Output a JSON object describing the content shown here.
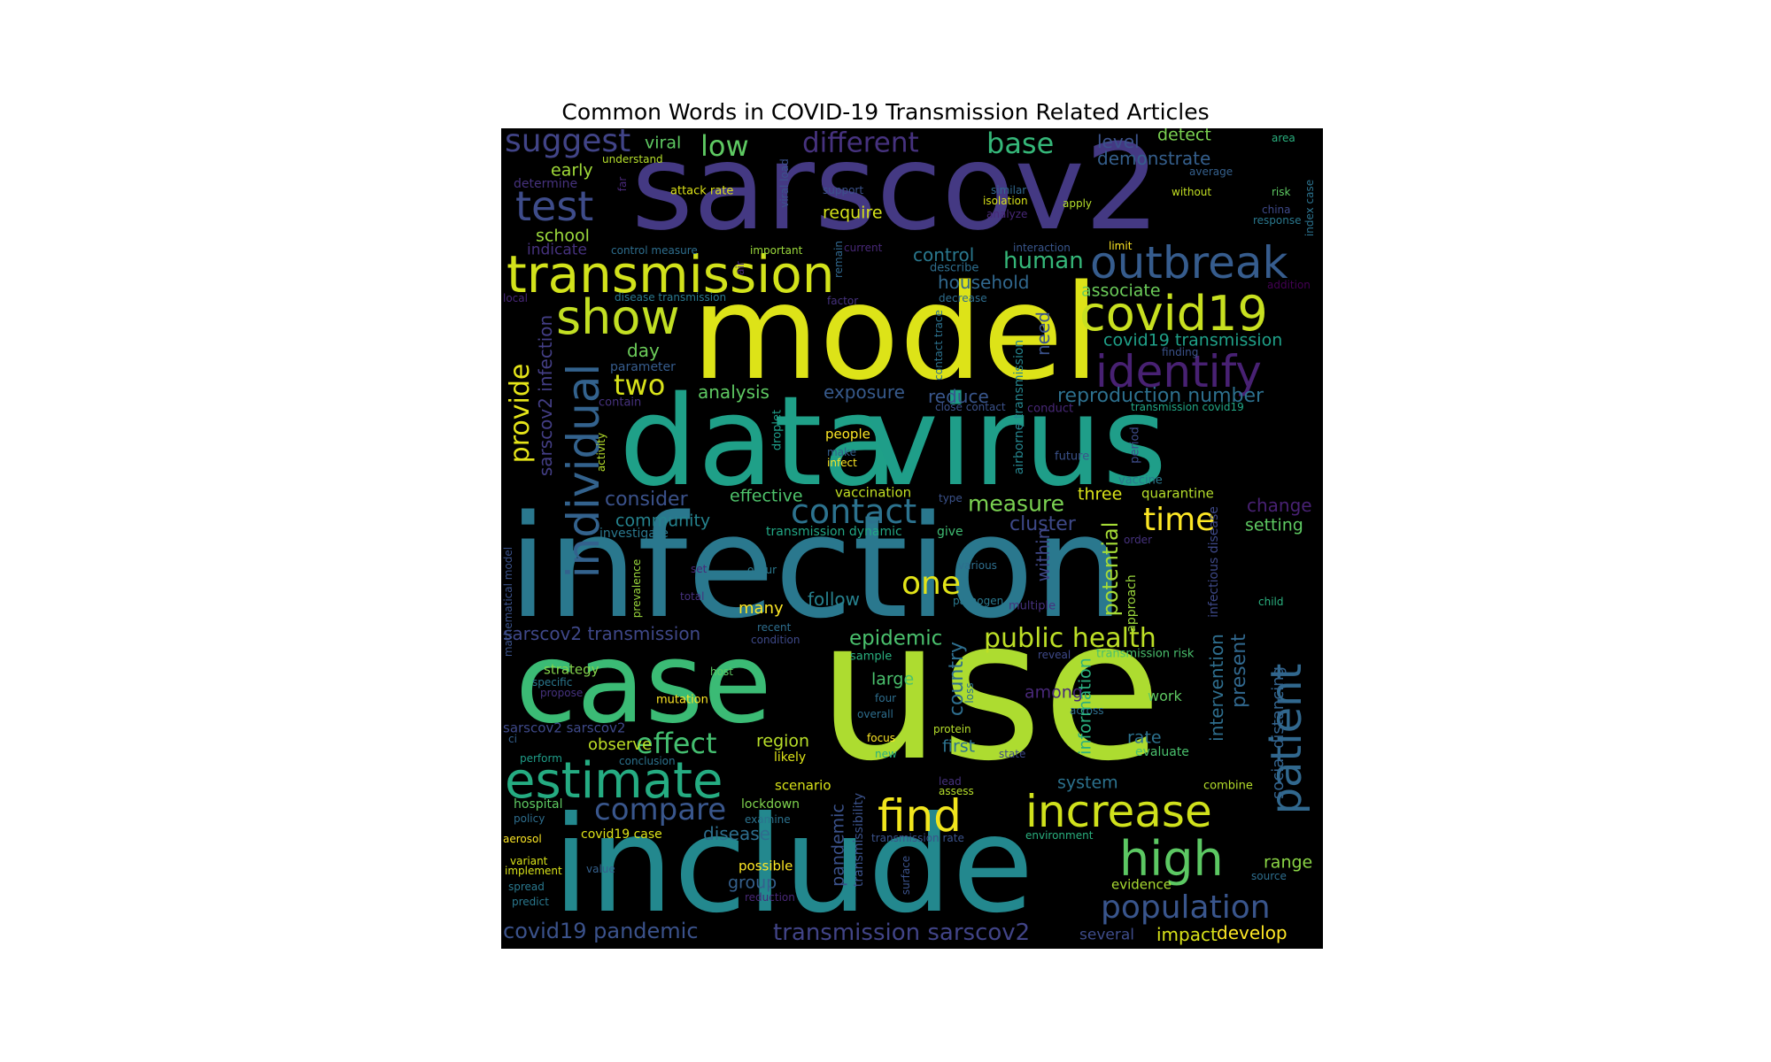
{
  "title": "Common Words in COVID-19 Transmission Related Articles",
  "words": [
    {
      "text": "sarscov2",
      "color": "#443983"
    },
    {
      "text": "model",
      "color": "#dde318"
    },
    {
      "text": "data",
      "color": "#1fa088"
    },
    {
      "text": "virus",
      "color": "#1f9e89"
    },
    {
      "text": "infection",
      "color": "#2a788e"
    },
    {
      "text": "case",
      "color": "#3bbb75"
    },
    {
      "text": "use",
      "color": "#addc30"
    },
    {
      "text": "include",
      "color": "#23888e"
    },
    {
      "text": "transmission",
      "color": "#d2e21b"
    },
    {
      "text": "show",
      "color": "#c2df23"
    },
    {
      "text": "test",
      "color": "#3e4c8a"
    },
    {
      "text": "suggest",
      "color": "#414487"
    },
    {
      "text": "low",
      "color": "#5ec962"
    },
    {
      "text": "different",
      "color": "#46327e"
    },
    {
      "text": "base",
      "color": "#35b779"
    },
    {
      "text": "outbreak",
      "color": "#365c8d"
    },
    {
      "text": "covid19",
      "color": "#c8e020"
    },
    {
      "text": "identify",
      "color": "#482173"
    },
    {
      "text": "individual",
      "color": "#33628d"
    },
    {
      "text": "provide",
      "color": "#e5e419"
    },
    {
      "text": "two",
      "color": "#d8e219"
    },
    {
      "text": "contact",
      "color": "#2c728e"
    },
    {
      "text": "time",
      "color": "#fde725"
    },
    {
      "text": "estimate",
      "color": "#25ac82"
    },
    {
      "text": "effect",
      "color": "#44bf70"
    },
    {
      "text": "compare",
      "color": "#39568c"
    },
    {
      "text": "find",
      "color": "#f1e51d"
    },
    {
      "text": "increase",
      "color": "#d0e11c"
    },
    {
      "text": "high",
      "color": "#5cc863"
    },
    {
      "text": "patient",
      "color": "#31688e"
    },
    {
      "text": "population",
      "color": "#39558c"
    },
    {
      "text": "public health",
      "color": "#bddf26"
    },
    {
      "text": "one",
      "color": "#e2e418"
    },
    {
      "text": "epidemic",
      "color": "#4ac16d"
    },
    {
      "text": "country",
      "color": "#2e6e8e"
    },
    {
      "text": "measure",
      "color": "#7ad151"
    },
    {
      "text": "cluster",
      "color": "#3e4989"
    },
    {
      "text": "reproduction number",
      "color": "#2d708e"
    },
    {
      "text": "within",
      "color": "#3f4788"
    },
    {
      "text": "potential",
      "color": "#a5db36"
    },
    {
      "text": "sarscov2 infection",
      "color": "#433e85"
    },
    {
      "text": "covid19 pandemic",
      "color": "#3b528b"
    },
    {
      "text": "transmission sarscov2",
      "color": "#414487"
    },
    {
      "text": "sarscov2 transmission",
      "color": "#3f4889"
    },
    {
      "text": "analysis",
      "color": "#5ec962"
    },
    {
      "text": "exposure",
      "color": "#375a8c"
    },
    {
      "text": "reduce",
      "color": "#39568c"
    },
    {
      "text": "consider",
      "color": "#3b528b"
    },
    {
      "text": "effective",
      "color": "#4ec36b"
    },
    {
      "text": "community",
      "color": "#25838e"
    },
    {
      "text": "human",
      "color": "#35b779"
    },
    {
      "text": "household",
      "color": "#31688e"
    },
    {
      "text": "control",
      "color": "#2a788e"
    },
    {
      "text": "associate",
      "color": "#6ccd5a"
    },
    {
      "text": "covid19 transmission",
      "color": "#1fa088"
    },
    {
      "text": "require",
      "color": "#d5e21a"
    },
    {
      "text": "school",
      "color": "#9bd93c"
    },
    {
      "text": "early",
      "color": "#a0da39"
    },
    {
      "text": "viral",
      "color": "#5ec962"
    },
    {
      "text": "level",
      "color": "#3b528b"
    },
    {
      "text": "demonstrate",
      "color": "#355f8d"
    },
    {
      "text": "detect",
      "color": "#7ad151"
    },
    {
      "text": "indicate",
      "color": "#46327e"
    },
    {
      "text": "day",
      "color": "#6ccd5a"
    },
    {
      "text": "need",
      "color": "#3b528b"
    },
    {
      "text": "three",
      "color": "#d8e219"
    },
    {
      "text": "quarantine",
      "color": "#b5de2b"
    },
    {
      "text": "change",
      "color": "#482173"
    },
    {
      "text": "setting",
      "color": "#5ec962"
    },
    {
      "text": "follow",
      "color": "#26818e"
    },
    {
      "text": "many",
      "color": "#fde725"
    },
    {
      "text": "large",
      "color": "#4ac16d"
    },
    {
      "text": "first",
      "color": "#2c728e"
    },
    {
      "text": "region",
      "color": "#b8de29"
    },
    {
      "text": "observe",
      "color": "#bddf26"
    },
    {
      "text": "present",
      "color": "#31688e"
    },
    {
      "text": "social distancing",
      "color": "#33638d"
    },
    {
      "text": "intervention",
      "color": "#2e6e8e"
    },
    {
      "text": "information",
      "color": "#2ab07f"
    },
    {
      "text": "rate",
      "color": "#2c728e"
    },
    {
      "text": "among",
      "color": "#482878"
    },
    {
      "text": "system",
      "color": "#2c728e"
    },
    {
      "text": "range",
      "color": "#8bd646"
    },
    {
      "text": "impact",
      "color": "#d8e219"
    },
    {
      "text": "develop",
      "color": "#fde725"
    },
    {
      "text": "several",
      "color": "#3e4c8a"
    },
    {
      "text": "disease",
      "color": "#2e6e8e"
    },
    {
      "text": "group",
      "color": "#35608d"
    },
    {
      "text": "pandemic",
      "color": "#3b528b"
    },
    {
      "text": "evidence",
      "color": "#aadc32"
    },
    {
      "text": "scenario",
      "color": "#d8e219"
    },
    {
      "text": "lockdown",
      "color": "#7fd34e"
    },
    {
      "text": "hospital",
      "color": "#5ec962"
    },
    {
      "text": "possible",
      "color": "#fde725"
    },
    {
      "text": "covid19 case",
      "color": "#dde318"
    },
    {
      "text": "strategy",
      "color": "#84d44b"
    },
    {
      "text": "people",
      "color": "#fde725"
    },
    {
      "text": "vaccination",
      "color": "#c2df23"
    },
    {
      "text": "likely",
      "color": "#dde318"
    },
    {
      "text": "airborne transmission",
      "color": "#25858e"
    },
    {
      "text": "mutation",
      "color": "#fde725"
    },
    {
      "text": "work",
      "color": "#5ec962"
    },
    {
      "text": "evaluate",
      "color": "#4ac16d"
    },
    {
      "text": "combine",
      "color": "#b5de2b"
    },
    {
      "text": "transmission dynamic",
      "color": "#22a785"
    },
    {
      "text": "give",
      "color": "#3fbc73"
    },
    {
      "text": "investigate",
      "color": "#2a788e"
    },
    {
      "text": "infectious disease",
      "color": "#3e4989"
    },
    {
      "text": "approach",
      "color": "#9bd93c"
    },
    {
      "text": "sample",
      "color": "#2ab07f"
    },
    {
      "text": "transmission risk",
      "color": "#4ac16d"
    },
    {
      "text": "sarscov2 sarscov2",
      "color": "#3e4989"
    },
    {
      "text": "parameter",
      "color": "#365c8d"
    },
    {
      "text": "contain",
      "color": "#46327e"
    },
    {
      "text": "droplet",
      "color": "#1f9e89"
    },
    {
      "text": "activity",
      "color": "#b5de2b"
    },
    {
      "text": "vaccine",
      "color": "#2a788e"
    },
    {
      "text": "period",
      "color": "#3e4c8a"
    },
    {
      "text": "future",
      "color": "#3b528b"
    },
    {
      "text": "make",
      "color": "#355f8d"
    },
    {
      "text": "infect",
      "color": "#fde725"
    },
    {
      "text": "transmission covid19",
      "color": "#22a785"
    },
    {
      "text": "finding",
      "color": "#3b528b"
    },
    {
      "text": "conduct",
      "color": "#482878"
    },
    {
      "text": "close contact",
      "color": "#3b528b"
    },
    {
      "text": "contact trace",
      "color": "#2c728e"
    },
    {
      "text": "decrease",
      "color": "#2e6e8e"
    },
    {
      "text": "factor",
      "color": "#46327e"
    },
    {
      "text": "describe",
      "color": "#2e6e8e"
    },
    {
      "text": "disease transmission",
      "color": "#2a788e"
    },
    {
      "text": "remain",
      "color": "#31688e"
    },
    {
      "text": "air",
      "color": "#482878"
    },
    {
      "text": "local",
      "color": "#482878"
    },
    {
      "text": "addition",
      "color": "#440154"
    },
    {
      "text": "attack rate",
      "color": "#dde318"
    },
    {
      "text": "support",
      "color": "#3b528b"
    },
    {
      "text": "understand",
      "color": "#b5de2b"
    },
    {
      "text": "determine",
      "color": "#46327e"
    },
    {
      "text": "viral load",
      "color": "#3b528b"
    },
    {
      "text": "control measure",
      "color": "#2e6e8e"
    },
    {
      "text": "important",
      "color": "#9bd93c"
    },
    {
      "text": "current",
      "color": "#482878"
    },
    {
      "text": "interaction",
      "color": "#39568c"
    },
    {
      "text": "limit",
      "color": "#fde725"
    },
    {
      "text": "isolation",
      "color": "#d8e219"
    },
    {
      "text": "apply",
      "color": "#b5de2b"
    },
    {
      "text": "similar",
      "color": "#31688e"
    },
    {
      "text": "analyze",
      "color": "#482878"
    },
    {
      "text": "without",
      "color": "#c2df23"
    },
    {
      "text": "risk",
      "color": "#5ec962"
    },
    {
      "text": "average",
      "color": "#35608d"
    },
    {
      "text": "area",
      "color": "#2ab07f"
    },
    {
      "text": "china",
      "color": "#3e4989"
    },
    {
      "text": "response",
      "color": "#2a788e"
    },
    {
      "text": "index case",
      "color": "#2c728e"
    },
    {
      "text": "far",
      "color": "#482878"
    },
    {
      "text": "type",
      "color": "#3b528b"
    },
    {
      "text": "various",
      "color": "#2e6e8e"
    },
    {
      "text": "occur",
      "color": "#2a788e"
    },
    {
      "text": "order",
      "color": "#46327e"
    },
    {
      "text": "set",
      "color": "#482878"
    },
    {
      "text": "total",
      "color": "#46327e"
    },
    {
      "text": "pathogen",
      "color": "#2a788e"
    },
    {
      "text": "multiple",
      "color": "#46327e"
    },
    {
      "text": "child",
      "color": "#2ab07f"
    },
    {
      "text": "prevalence",
      "color": "#9bd93c"
    },
    {
      "text": "mathematical model",
      "color": "#3b528b"
    },
    {
      "text": "recent",
      "color": "#2e6e8e"
    },
    {
      "text": "condition",
      "color": "#3e4989"
    },
    {
      "text": "reveal",
      "color": "#3e4989"
    },
    {
      "text": "specific",
      "color": "#2a788e"
    },
    {
      "text": "propose",
      "color": "#46327e"
    },
    {
      "text": "host",
      "color": "#5ec962"
    },
    {
      "text": "four",
      "color": "#2e6e8e"
    },
    {
      "text": "overall",
      "color": "#2e6e8e"
    },
    {
      "text": "protein",
      "color": "#b5de2b"
    },
    {
      "text": "focus",
      "color": "#fde725"
    },
    {
      "text": "new",
      "color": "#2ab07f"
    },
    {
      "text": "state",
      "color": "#3e4989"
    },
    {
      "text": "lead",
      "color": "#46327e"
    },
    {
      "text": "assess",
      "color": "#b5de2b"
    },
    {
      "text": "loss",
      "color": "#2c728e"
    },
    {
      "text": "across",
      "color": "#2e6e8e"
    },
    {
      "text": "ci",
      "color": "#35608d"
    },
    {
      "text": "perform",
      "color": "#1f9e89"
    },
    {
      "text": "conclusion",
      "color": "#2c728e"
    },
    {
      "text": "policy",
      "color": "#2e6e8e"
    },
    {
      "text": "examine",
      "color": "#2c728e"
    },
    {
      "text": "aerosol",
      "color": "#fde725"
    },
    {
      "text": "transmission rate",
      "color": "#3b528b"
    },
    {
      "text": "environment",
      "color": "#2ab07f"
    },
    {
      "text": "variant",
      "color": "#d8e219"
    },
    {
      "text": "implement",
      "color": "#d8e219"
    },
    {
      "text": "value",
      "color": "#35608d"
    },
    {
      "text": "spread",
      "color": "#2a788e"
    },
    {
      "text": "predict",
      "color": "#2a788e"
    },
    {
      "text": "reduction",
      "color": "#482878"
    },
    {
      "text": "transmissibility",
      "color": "#3b528b"
    },
    {
      "text": "surface",
      "color": "#3b528b"
    },
    {
      "text": "source",
      "color": "#2e6e8e"
    }
  ]
}
